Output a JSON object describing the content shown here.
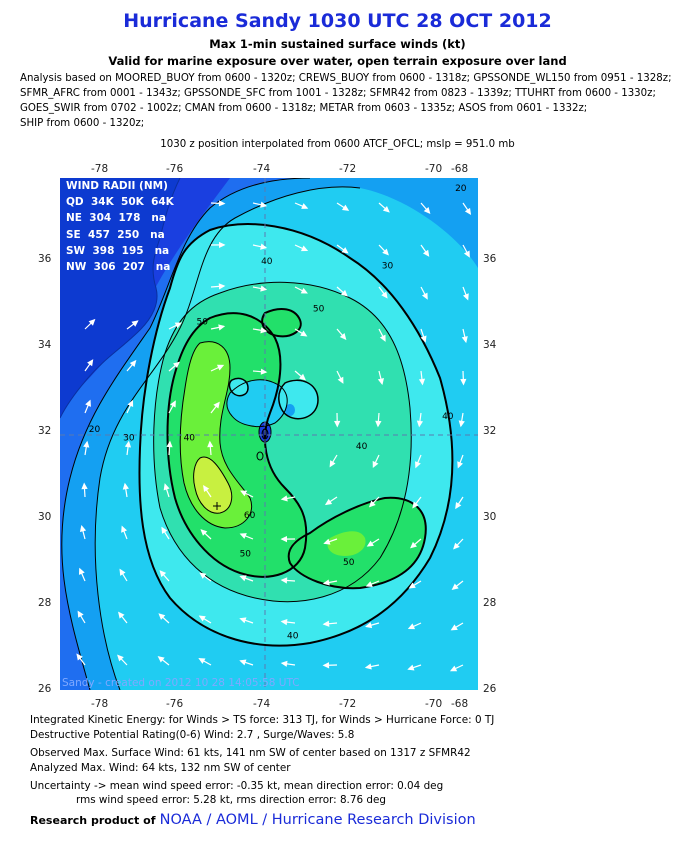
{
  "header": {
    "title": "Hurricane Sandy 1030 UTC 28 OCT 2012",
    "subtitle": "Max 1-min sustained surface winds (kt)",
    "valid_line": "Valid for marine exposure over water, open terrain exposure over land",
    "analysis_lines": [
      "Analysis based on MOORED_BUOY from 0600 - 1320z; CREWS_BUOY from 0600 - 1318z; GPSSONDE_WL150 from 0951 - 1328z;",
      "SFMR_AFRC from 0001 - 1343z; GPSSONDE_SFC from 1001 - 1328z; SFMR42 from 0823 - 1339z; TTUHRT from 0600 - 1330z;",
      "GOES_SWIR from 0702 - 1002z; CMAN from 0600 - 1318z; METAR from 0603 - 1335z; ASOS from 0601 - 1332z;",
      "SHIP from 0600 - 1320z;"
    ],
    "position_note": "1030 z position interpolated from 0600 ATCF_OFCL; mslp = 951.0 mb"
  },
  "map": {
    "lon_ticks": [
      "-78",
      "-76",
      "-74",
      "-72",
      "-70",
      "-68"
    ],
    "lat_ticks": [
      "36",
      "34",
      "32",
      "30",
      "28",
      "26"
    ],
    "lon_range": [
      -79.0,
      -69.3
    ],
    "lat_range": [
      26.0,
      37.9
    ],
    "contour_labels": [
      {
        "text": "20",
        "lon": -69.7,
        "lat": 37.6
      },
      {
        "text": "30",
        "lon": -71.4,
        "lat": 35.8
      },
      {
        "text": "40",
        "lon": -74.2,
        "lat": 35.9
      },
      {
        "text": "50",
        "lon": -75.7,
        "lat": 34.5
      },
      {
        "text": "50",
        "lon": -73.0,
        "lat": 34.8
      },
      {
        "text": "40",
        "lon": -70.0,
        "lat": 32.3
      },
      {
        "text": "40",
        "lon": -72.0,
        "lat": 31.6
      },
      {
        "text": "20",
        "lon": -78.2,
        "lat": 32.0
      },
      {
        "text": "30",
        "lon": -77.4,
        "lat": 31.8
      },
      {
        "text": "40",
        "lon": -76.0,
        "lat": 31.8
      },
      {
        "text": "60",
        "lon": -74.6,
        "lat": 30.0
      },
      {
        "text": "50",
        "lon": -74.7,
        "lat": 29.1
      },
      {
        "text": "50",
        "lon": -72.3,
        "lat": 28.9
      },
      {
        "text": "40",
        "lon": -73.6,
        "lat": 27.2
      }
    ],
    "credit": "Sandy - created on 2012 10 28 14:05:58 UTC",
    "colors": {
      "level_0": "#1a3fe0",
      "level_10": "#1f6ef0",
      "level_20": "#14a0f2",
      "level_30": "#20ccf2",
      "level_40": "#3ee8ee",
      "level_45": "#30e0b0",
      "level_50": "#22e06a",
      "level_55": "#6af03a",
      "level_60": "#c8f040",
      "land": "#0d3ad0",
      "contour": "#000000"
    }
  },
  "wind_radii": {
    "title": "WIND RADII (NM)",
    "header": "QD  34K  50K  64K",
    "rows": [
      "NE  304  178   na",
      "SE  457  250   na",
      "SW  398  195   na",
      "NW  306  207   na"
    ]
  },
  "stats": {
    "ike": "Integrated Kinetic Energy: for Winds > TS force: 313 TJ, for Winds > Hurricane Force: 0 TJ",
    "destructive": "Destructive Potential Rating(0-6)  Wind: 2.7 , Surge/Waves: 5.8",
    "observed": "Observed Max. Surface Wind: 61 kts, 141 nm SW of center based on 1317 z SFMR42",
    "analyzed": "Analyzed Max. Wind: 64 kts, 132 nm  SW of center",
    "uncertainty_1": "Uncertainty -> mean wind speed error:  -0.35 kt, mean direction error: 0.04 deg",
    "uncertainty_2": "rms wind speed error: 5.28 kt, rms direction error: 8.76 deg"
  },
  "footer": {
    "prefix": "Research product of",
    "org": "NOAA  /  AOML  /  Hurricane Research Division"
  }
}
